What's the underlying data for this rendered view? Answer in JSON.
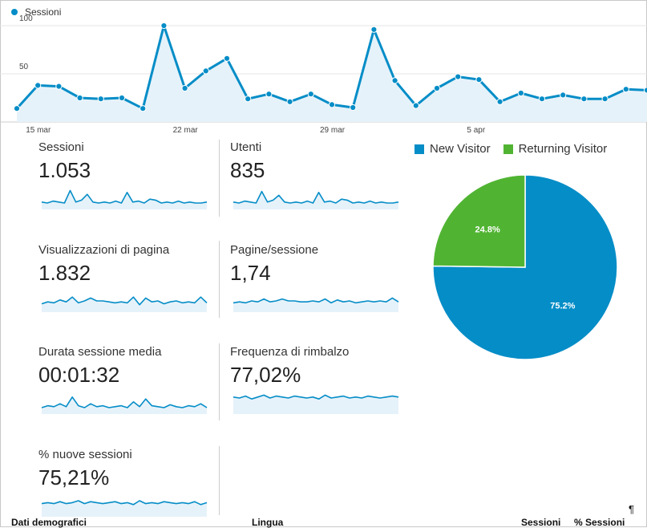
{
  "chart_data": [
    {
      "type": "area",
      "title": "",
      "legend": "top-left",
      "series": [
        {
          "name": "Sessioni",
          "color": "#058dc7",
          "values": [
            14,
            38,
            37,
            25,
            24,
            25,
            14,
            100,
            35,
            53,
            66,
            24,
            29,
            21,
            29,
            18,
            15,
            96,
            43,
            17,
            35,
            47,
            44,
            21,
            30,
            24,
            28,
            24,
            24,
            34,
            33
          ]
        }
      ],
      "x_tick_labels": [
        {
          "label": "15 mar",
          "index": 1
        },
        {
          "label": "22 mar",
          "index": 8
        },
        {
          "label": "29 mar",
          "index": 15
        },
        {
          "label": "5 apr",
          "index": 22
        }
      ],
      "y_tick_labels": [
        {
          "label": "100",
          "value": 100
        },
        {
          "label": "50",
          "value": 50
        }
      ],
      "ylim": [
        0,
        115
      ],
      "grid": true
    },
    {
      "type": "pie",
      "legend": "top",
      "slices": [
        {
          "name": "New Visitor",
          "value": 75.2,
          "label": "75.2%",
          "color": "#058dc7"
        },
        {
          "name": "Returning Visitor",
          "value": 24.8,
          "label": "24.8%",
          "color": "#50b432"
        }
      ]
    }
  ],
  "metrics": [
    {
      "label": "Sessioni",
      "value": "1.053",
      "spark": [
        6,
        5,
        7,
        6,
        5,
        18,
        6,
        8,
        14,
        6,
        5,
        6,
        5,
        7,
        5,
        16,
        6,
        7,
        5,
        9,
        8,
        5,
        6,
        5,
        7,
        5,
        6,
        5,
        5,
        6
      ]
    },
    {
      "label": "Utenti",
      "value": "835",
      "spark": [
        6,
        5,
        7,
        6,
        5,
        17,
        6,
        8,
        13,
        6,
        5,
        6,
        5,
        7,
        5,
        16,
        6,
        7,
        5,
        9,
        8,
        5,
        6,
        5,
        7,
        5,
        6,
        5,
        5,
        6
      ]
    },
    {
      "label": "Visualizzazioni di pagina",
      "value": "1.832",
      "spark": [
        7,
        9,
        8,
        11,
        9,
        14,
        8,
        10,
        13,
        10,
        10,
        9,
        8,
        9,
        8,
        14,
        6,
        13,
        9,
        10,
        7,
        9,
        10,
        8,
        9,
        8,
        14,
        8
      ]
    },
    {
      "label": "Pagine/sessione",
      "value": "1,74",
      "spark": [
        8,
        9,
        8,
        10,
        9,
        12,
        9,
        10,
        12,
        10,
        10,
        9,
        9,
        10,
        9,
        12,
        8,
        11,
        9,
        10,
        8,
        9,
        10,
        9,
        10,
        9,
        13,
        9
      ]
    },
    {
      "label": "Durata sessione media",
      "value": "00:01:32",
      "spark": [
        5,
        7,
        6,
        9,
        6,
        16,
        7,
        5,
        9,
        6,
        7,
        5,
        6,
        7,
        5,
        11,
        6,
        14,
        7,
        6,
        5,
        8,
        6,
        5,
        7,
        6,
        9,
        5
      ]
    },
    {
      "label": "Frequenza di rimbalzo",
      "value": "77,02%",
      "spark": [
        16,
        15,
        17,
        14,
        16,
        18,
        15,
        17,
        16,
        15,
        17,
        16,
        15,
        16,
        14,
        18,
        15,
        16,
        17,
        15,
        16,
        15,
        17,
        16,
        15,
        16,
        17,
        16
      ]
    },
    {
      "label": "% nuove sessioni",
      "value": "75,21%",
      "spark": [
        12,
        13,
        12,
        14,
        12,
        13,
        15,
        12,
        14,
        13,
        12,
        13,
        14,
        12,
        13,
        11,
        15,
        12,
        13,
        12,
        14,
        13,
        12,
        13,
        12,
        14,
        11,
        13
      ]
    }
  ],
  "bottom_row": {
    "col1": "Dati demografici",
    "col2": "Lingua",
    "col3": "Sessioni",
    "col4": "% Sessioni"
  },
  "pilcrow": "¶"
}
